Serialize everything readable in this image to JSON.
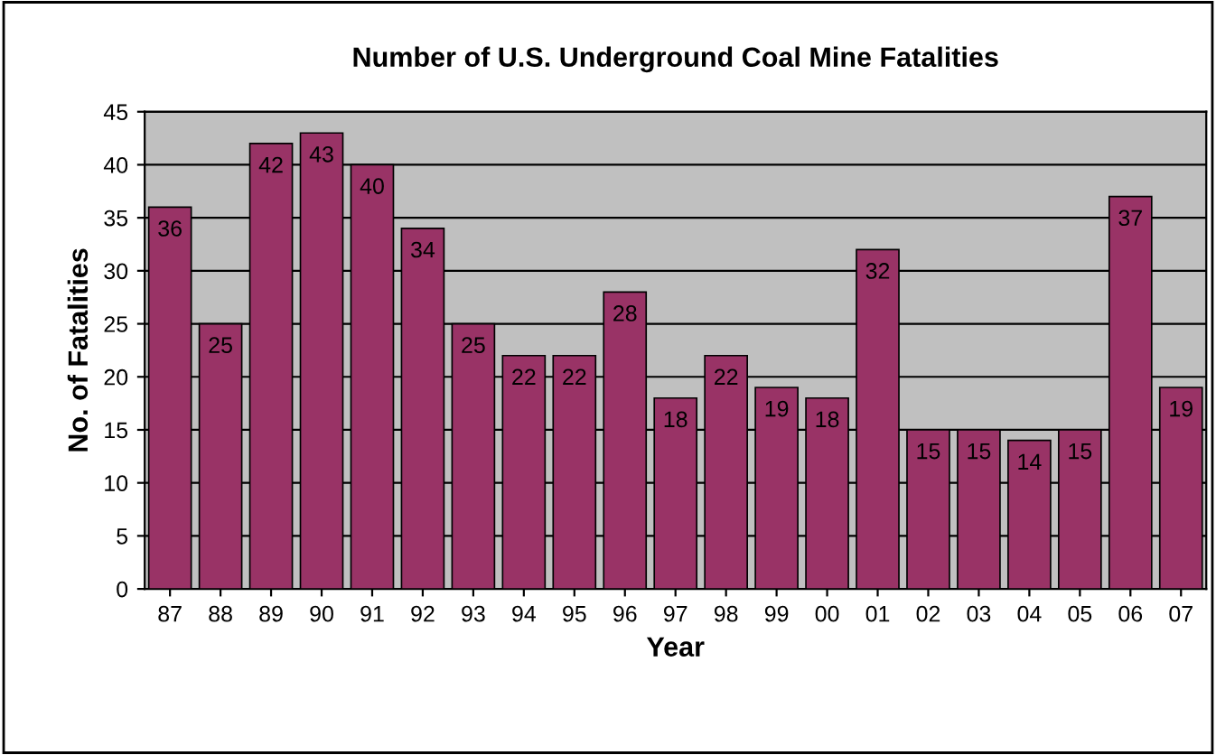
{
  "chart_data": {
    "type": "bar",
    "title": "Number of U.S. Underground Coal Mine Fatalities",
    "xlabel": "Year",
    "ylabel": "No. of Fatalities",
    "categories": [
      "87",
      "88",
      "89",
      "90",
      "91",
      "92",
      "93",
      "94",
      "95",
      "96",
      "97",
      "98",
      "99",
      "00",
      "01",
      "02",
      "03",
      "04",
      "05",
      "06",
      "07"
    ],
    "values": [
      36,
      25,
      42,
      43,
      40,
      34,
      25,
      22,
      22,
      28,
      18,
      22,
      19,
      18,
      32,
      15,
      15,
      14,
      15,
      37,
      19
    ],
    "color": "#993366",
    "ylim": [
      0,
      45
    ],
    "yticks": [
      0,
      5,
      10,
      15,
      20,
      25,
      30,
      35,
      40,
      45
    ],
    "grid": "y",
    "data_labels": true,
    "legend": false
  }
}
